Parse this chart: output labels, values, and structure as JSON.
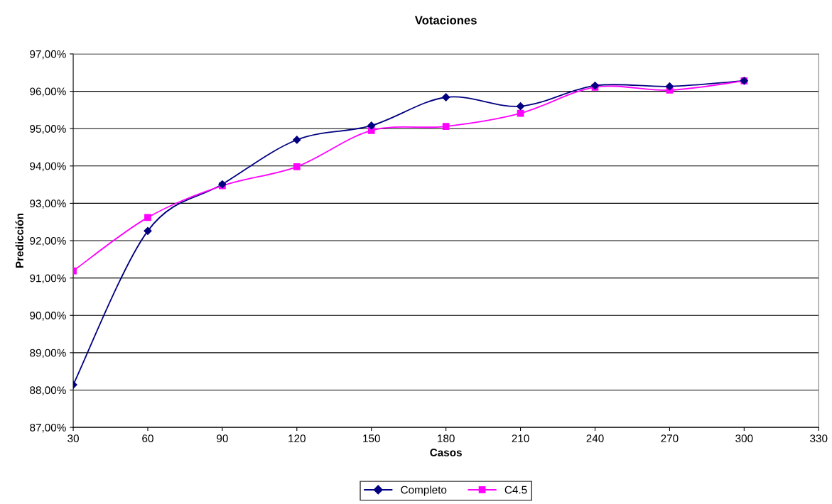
{
  "chart_data": {
    "type": "line",
    "title": "Votaciones",
    "xlabel": "Casos",
    "ylabel": "Predicción",
    "x": [
      30,
      60,
      90,
      120,
      150,
      180,
      210,
      240,
      270,
      300
    ],
    "series": [
      {
        "name": "Completo",
        "color": "#000080",
        "marker": "diamond",
        "values": [
          88.14,
          92.26,
          93.51,
          94.7,
          95.08,
          95.84,
          95.6,
          96.15,
          96.13,
          96.28
        ]
      },
      {
        "name": "C4.5",
        "color": "#ff00ff",
        "marker": "square",
        "values": [
          91.19,
          92.62,
          93.47,
          93.98,
          94.95,
          95.06,
          95.41,
          96.11,
          96.03,
          96.28
        ]
      }
    ],
    "xlim": [
      30,
      330
    ],
    "xticks": [
      30,
      60,
      90,
      120,
      150,
      180,
      210,
      240,
      270,
      300,
      330
    ],
    "ylim": [
      87,
      97
    ],
    "yticks": [
      {
        "value": 87,
        "label": "87,00%"
      },
      {
        "value": 88,
        "label": "88,00%"
      },
      {
        "value": 89,
        "label": "89,00%"
      },
      {
        "value": 90,
        "label": "90,00%"
      },
      {
        "value": 91,
        "label": "91,00%"
      },
      {
        "value": 92,
        "label": "92,00%"
      },
      {
        "value": 93,
        "label": "93,00%"
      },
      {
        "value": 94,
        "label": "94,00%"
      },
      {
        "value": 95,
        "label": "95,00%"
      },
      {
        "value": 96,
        "label": "96,00%"
      },
      {
        "value": 97,
        "label": "97,00%"
      }
    ],
    "grid": "y",
    "legend": "bottom",
    "line_style": "solid"
  }
}
